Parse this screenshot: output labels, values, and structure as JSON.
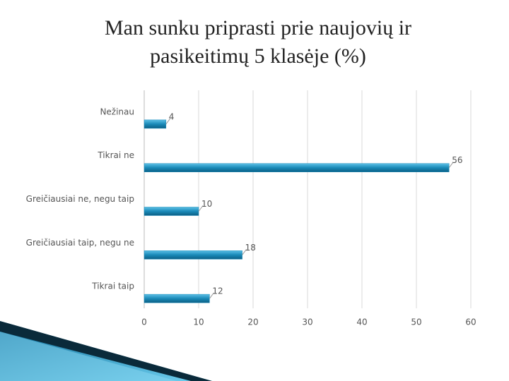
{
  "chart_data": {
    "type": "barh",
    "title": "Man sunku priprasti prie naujovių ir pasikeitimų 5 klasėje (%)",
    "categories": [
      "Nežinau",
      "Tikrai ne",
      "Greičiausiai ne, negu taip",
      "Greičiausiai taip, negu ne",
      "Tikrai taip"
    ],
    "values": [
      4,
      56,
      10,
      18,
      12
    ],
    "color": "#1a8ab8",
    "xlim": [
      0,
      60
    ],
    "xticks": [
      0,
      10,
      20,
      30,
      40,
      50,
      60
    ],
    "grid": true
  }
}
